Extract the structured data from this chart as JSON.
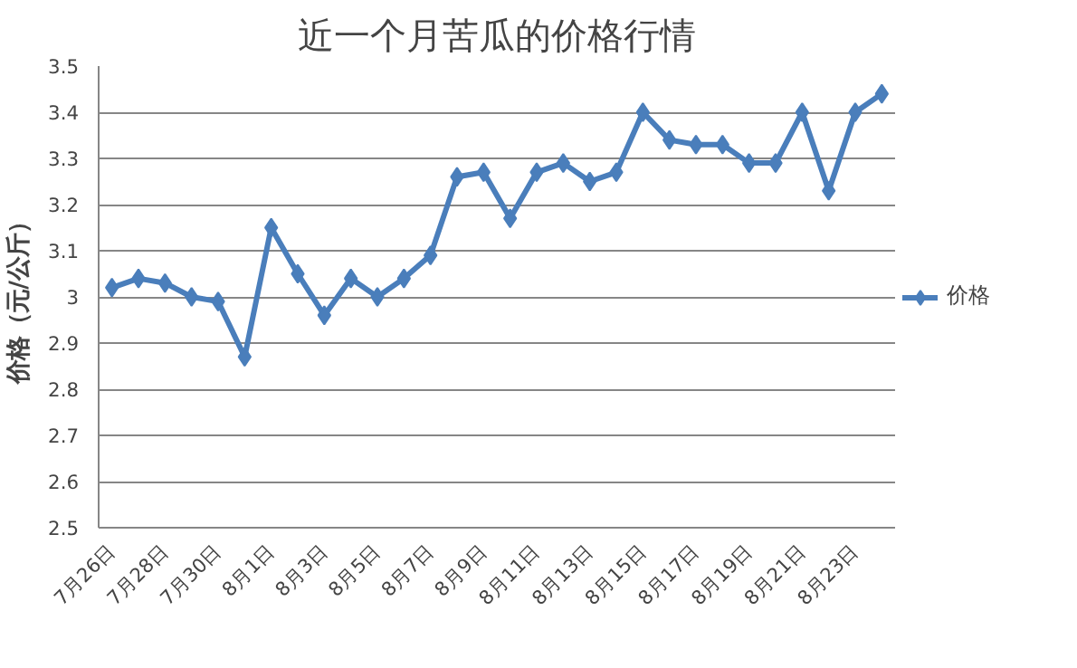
{
  "chart_data": {
    "type": "line",
    "title": "近一个月苦瓜的价格行情",
    "ylabel": "价格（元/公斤）",
    "categories": [
      "7月26日",
      null,
      "7月28日",
      null,
      "7月30日",
      null,
      "8月1日",
      null,
      "8月3日",
      null,
      "8月5日",
      null,
      "8月7日",
      null,
      "8月9日",
      null,
      "8月11日",
      null,
      "8月13日",
      null,
      "8月15日",
      null,
      "8月17日",
      null,
      "8月19日",
      null,
      "8月21日",
      null,
      "8月23日",
      null
    ],
    "series": [
      {
        "name": "价格",
        "color": "#4a7ebb",
        "values": [
          3.02,
          3.04,
          3.03,
          3.0,
          2.99,
          2.87,
          3.15,
          3.05,
          2.96,
          3.04,
          3.0,
          3.04,
          3.09,
          3.26,
          3.27,
          3.17,
          3.27,
          3.29,
          3.25,
          3.27,
          3.4,
          3.34,
          3.33,
          3.33,
          3.29,
          3.29,
          3.4,
          3.23,
          3.4,
          3.44
        ]
      }
    ],
    "ylim": [
      2.5,
      3.5
    ],
    "yticks": [
      2.5,
      2.6,
      2.7,
      2.8,
      2.9,
      3,
      3.1,
      3.2,
      3.3,
      3.4,
      3.5
    ],
    "grid": "y",
    "legend": "right",
    "marker": "diamond",
    "line_style": "solid"
  }
}
